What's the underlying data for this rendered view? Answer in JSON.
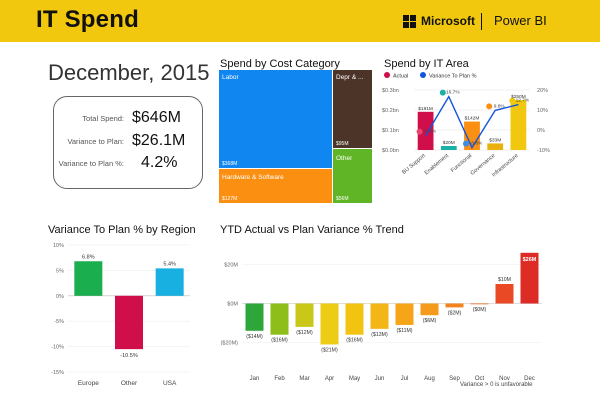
{
  "header": {
    "title": "IT Spend",
    "vendor": "Microsoft",
    "product": "Power BI",
    "bar_color": "#f2c80f"
  },
  "period": "December, 2015",
  "kpis": [
    {
      "label": "Total Spend:",
      "value": "$646M"
    },
    {
      "label": "Variance to Plan:",
      "value": "$26.1M"
    },
    {
      "label": "Variance to Plan %:",
      "value": "4.2%"
    }
  ],
  "treemap": {
    "title": "Spend by Cost Category",
    "tiles": [
      {
        "name": "Labor",
        "value": "$368M",
        "color": "#0f86f0"
      },
      {
        "name": "Depr & ...",
        "value": "$95M",
        "color": "#4c3528"
      },
      {
        "name": "Hardware & Software",
        "value": "$127M",
        "color": "#fb8f11"
      },
      {
        "name": "Other",
        "value": "$56M",
        "color": "#5fb526"
      }
    ]
  },
  "area_chart": {
    "title": "Spend by IT Area",
    "legend": [
      {
        "name": "Actual",
        "color": "#cf0e4a"
      },
      {
        "name": "Variance To Plan %",
        "color": "#1155dd"
      }
    ],
    "left_ticks": [
      "$0.3bn",
      "$0.2bn",
      "$0.1bn",
      "$0.0bn"
    ],
    "right_ticks": [
      "20%",
      "10%",
      "0%",
      "-10%"
    ],
    "categories": [
      "BU Support",
      "Enablement",
      "Functional",
      "Governance",
      "Infrastructure"
    ],
    "bar_labels": [
      "$191M",
      "$20M",
      "$142M",
      "$33M",
      "$250M"
    ],
    "pct_labels": [
      "-2.8%",
      "16.7%",
      "-8.8%",
      "9.8%",
      "12.7%"
    ]
  },
  "region_chart": {
    "title": "Variance To Plan % by Region",
    "y_ticks": [
      "10%",
      "5%",
      "0%",
      "-5%",
      "-10%",
      "-15%"
    ],
    "categories": [
      "Europe",
      "Other",
      "USA"
    ],
    "value_labels": [
      "6.8%",
      "-10.5%",
      "5.4%"
    ]
  },
  "trend_chart": {
    "title": "YTD Actual vs Plan Variance % Trend",
    "y_ticks": [
      "$20M",
      "$0M",
      "($20M)"
    ],
    "categories": [
      "Jan",
      "Feb",
      "Mar",
      "Apr",
      "May",
      "Jun",
      "Jul",
      "Aug",
      "Sep",
      "Oct",
      "Nov",
      "Dec"
    ],
    "value_labels": [
      "($14M)",
      "($16M)",
      "($12M)",
      "($21M)",
      "($16M)",
      "($13M)",
      "($11M)",
      "($6M)",
      "($2M)",
      "($0M)",
      "$10M",
      "$26M"
    ],
    "footnote": "Variance > 0 is unfavorable"
  },
  "chart_data": [
    {
      "type": "bar",
      "title": "Spend by Cost Category",
      "categories": [
        "Labor",
        "Depr & ...",
        "Hardware & Software",
        "Other"
      ],
      "values": [
        368,
        95,
        127,
        56
      ]
    },
    {
      "type": "bar",
      "title": "Spend by IT Area",
      "categories": [
        "BU Support",
        "Enablement",
        "Functional",
        "Governance",
        "Infrastructure"
      ],
      "series": [
        {
          "name": "Actual",
          "values": [
            191,
            20,
            142,
            33,
            250
          ]
        },
        {
          "name": "Variance To Plan %",
          "values": [
            -2.8,
            16.7,
            -8.8,
            9.8,
            12.7
          ]
        }
      ],
      "ylim": [
        0,
        300
      ],
      "y2lim": [
        -10,
        20
      ],
      "colors": [
        "#cf0e4a",
        "#1ab1a8",
        "#fb8f11",
        "#e8b10f",
        "#f2c80f"
      ],
      "line_dot_colors": [
        "#e8446f",
        "#1ab1a8",
        "#3a8ee6",
        "#fb8f11",
        "#f2c80f"
      ]
    },
    {
      "type": "bar",
      "title": "Variance To Plan % by Region",
      "categories": [
        "Europe",
        "Other",
        "USA"
      ],
      "values": [
        6.8,
        -10.5,
        5.4
      ],
      "ylim": [
        -15,
        10
      ],
      "colors": [
        "#1aae4f",
        "#cf0e4a",
        "#18b0e0"
      ]
    },
    {
      "type": "bar",
      "title": "YTD Actual vs Plan Variance % Trend",
      "categories": [
        "Jan",
        "Feb",
        "Mar",
        "Apr",
        "May",
        "Jun",
        "Jul",
        "Aug",
        "Sep",
        "Oct",
        "Nov",
        "Dec"
      ],
      "values": [
        -14,
        -16,
        -12,
        -21,
        -16,
        -13,
        -11,
        -6,
        -2,
        -0.3,
        10,
        26
      ],
      "ylim": [
        -30,
        30
      ],
      "colors": [
        "#2ea63a",
        "#8dbe1a",
        "#c9c718",
        "#eccc15",
        "#f2c310",
        "#f4b516",
        "#f6a518",
        "#f59a1a",
        "#f3841d",
        "#ef6a22",
        "#e94a25",
        "#dd2c26"
      ]
    }
  ]
}
